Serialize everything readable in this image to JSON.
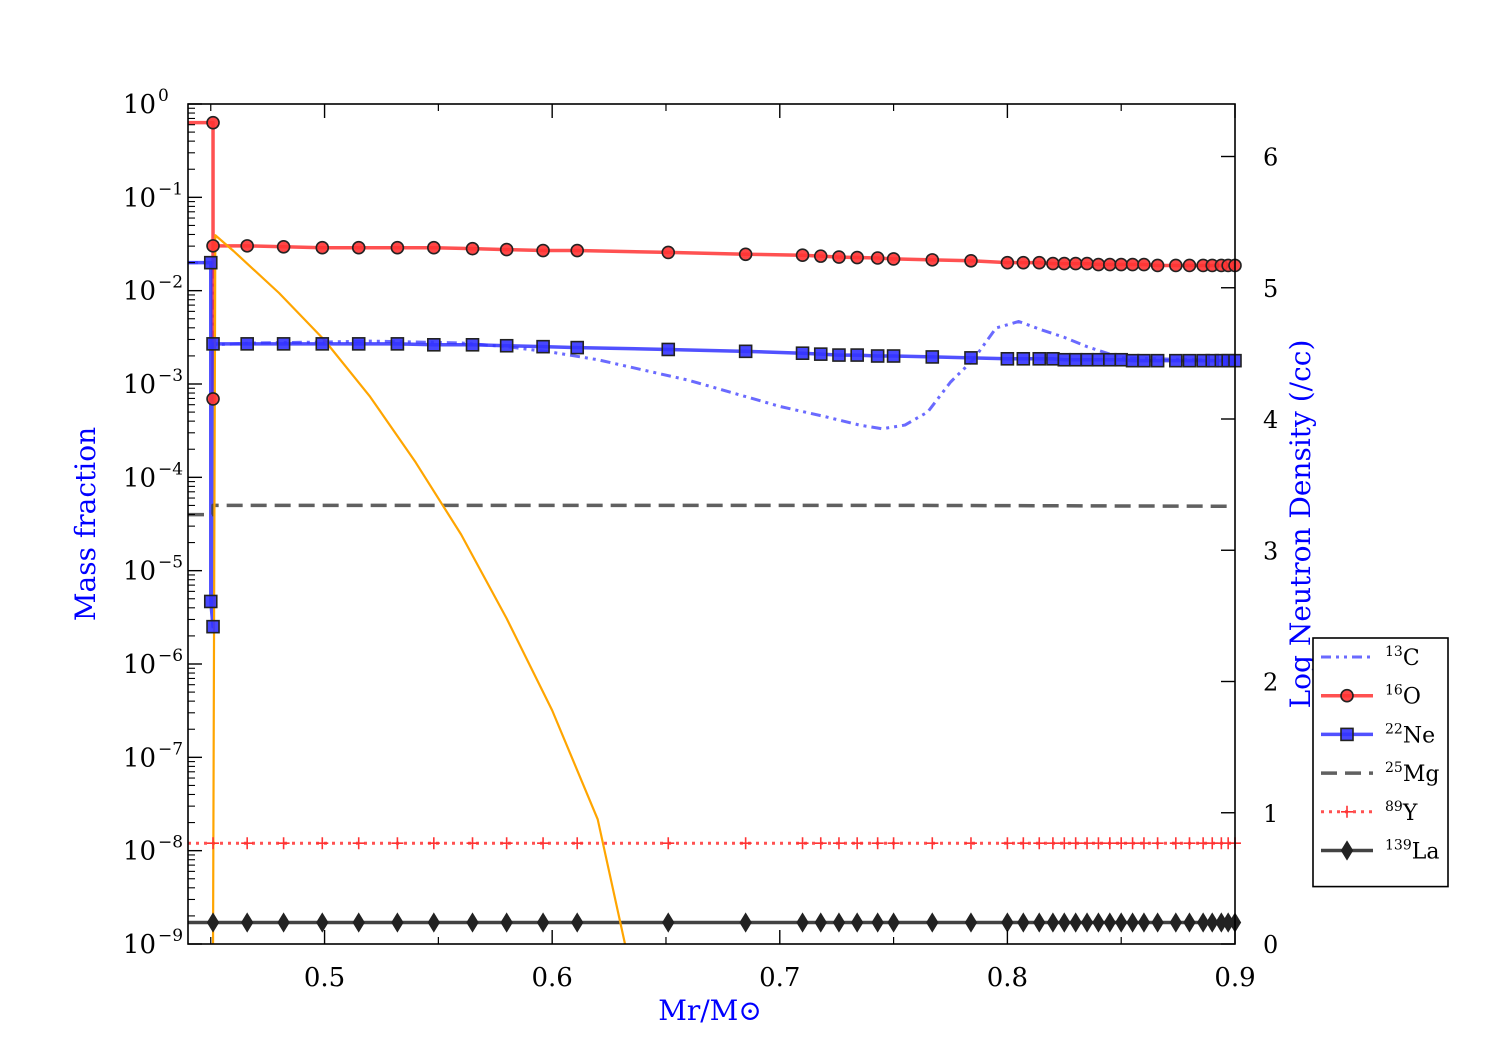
{
  "chart_data": {
    "type": "line",
    "title": "",
    "xlabel": "Mr/M⊙",
    "ylabel": "Mass fraction",
    "ylabel_right": "Log Neutron Density (/cc)",
    "xlim": [
      0.44,
      0.9
    ],
    "ylim_log10": [
      -9,
      0
    ],
    "ylim_right": [
      0,
      6.4
    ],
    "x_ticks": [
      0.5,
      0.6,
      0.7,
      0.8,
      0.9
    ],
    "x_tick_labels": [
      "0.5",
      "0.6",
      "0.7",
      "0.8",
      "0.9"
    ],
    "y_ticks": [
      {
        "base": "10",
        "exp": "0",
        "value": 0
      },
      {
        "base": "10",
        "exp": "−1",
        "value": -1
      },
      {
        "base": "10",
        "exp": "−2",
        "value": -2
      },
      {
        "base": "10",
        "exp": "−3",
        "value": -3
      },
      {
        "base": "10",
        "exp": "−4",
        "value": -4
      },
      {
        "base": "10",
        "exp": "−5",
        "value": -5
      },
      {
        "base": "10",
        "exp": "−6",
        "value": -6
      },
      {
        "base": "10",
        "exp": "−7",
        "value": -7
      },
      {
        "base": "10",
        "exp": "−8",
        "value": -8
      },
      {
        "base": "10",
        "exp": "−9",
        "value": -9
      }
    ],
    "y_right_ticks": [
      0,
      1,
      2,
      3,
      4,
      5,
      6
    ],
    "y_right_tick_labels": [
      "0",
      "1",
      "2",
      "3",
      "4",
      "5",
      "6"
    ],
    "legend_position": "right-outside-bottom",
    "series": [
      {
        "name": "13C",
        "mass": "13",
        "element": "C",
        "color": "#5050ff",
        "style": "dashdotdot",
        "marker": "none",
        "x": [
          0.44,
          0.451,
          0.451,
          0.47,
          0.5,
          0.52,
          0.54,
          0.56,
          0.58,
          0.6,
          0.62,
          0.64,
          0.66,
          0.68,
          0.7,
          0.72,
          0.735,
          0.745,
          0.755,
          0.765,
          0.775,
          0.785,
          0.795,
          0.805,
          0.815,
          0.825,
          0.835,
          0.85,
          0.9
        ],
        "y": [
          -1.7,
          -1.7,
          -2.58,
          -2.56,
          -2.55,
          -2.54,
          -2.55,
          -2.56,
          -2.6,
          -2.66,
          -2.74,
          -2.85,
          -2.96,
          -3.1,
          -3.24,
          -3.35,
          -3.44,
          -3.48,
          -3.44,
          -3.3,
          -2.98,
          -2.74,
          -2.4,
          -2.33,
          -2.42,
          -2.5,
          -2.6,
          -2.72,
          -2.75
        ]
      },
      {
        "name": "16O",
        "mass": "16",
        "element": "O",
        "color": "#ff3333",
        "style": "solid",
        "marker": "circle",
        "x": [
          0.44,
          0.451,
          0.451,
          0.451,
          0.451,
          0.466,
          0.482,
          0.499,
          0.515,
          0.532,
          0.548,
          0.565,
          0.58,
          0.596,
          0.611,
          0.651,
          0.685,
          0.71,
          0.718,
          0.726,
          0.734,
          0.743,
          0.75,
          0.767,
          0.784,
          0.8,
          0.807,
          0.814,
          0.82,
          0.825,
          0.83,
          0.835,
          0.84,
          0.845,
          0.85,
          0.855,
          0.86,
          0.866,
          0.874,
          0.88,
          0.886,
          0.89,
          0.894,
          0.897,
          0.9
        ],
        "y": [
          -0.2,
          -0.2,
          -3.16,
          -1.52,
          -1.52,
          -1.52,
          -1.53,
          -1.54,
          -1.54,
          -1.54,
          -1.54,
          -1.55,
          -1.56,
          -1.57,
          -1.57,
          -1.59,
          -1.61,
          -1.62,
          -1.63,
          -1.64,
          -1.645,
          -1.65,
          -1.66,
          -1.67,
          -1.68,
          -1.7,
          -1.7,
          -1.7,
          -1.71,
          -1.71,
          -1.71,
          -1.71,
          -1.72,
          -1.72,
          -1.72,
          -1.72,
          -1.72,
          -1.73,
          -1.73,
          -1.73,
          -1.73,
          -1.73,
          -1.73,
          -1.73,
          -1.73
        ],
        "markers": [
          [
            0.451,
            -0.2
          ],
          [
            0.451,
            -3.16
          ],
          [
            0.451,
            -1.52
          ],
          [
            0.466,
            -1.52
          ],
          [
            0.482,
            -1.53
          ],
          [
            0.499,
            -1.54
          ],
          [
            0.515,
            -1.54
          ],
          [
            0.532,
            -1.54
          ],
          [
            0.548,
            -1.54
          ],
          [
            0.565,
            -1.55
          ],
          [
            0.58,
            -1.56
          ],
          [
            0.596,
            -1.57
          ],
          [
            0.611,
            -1.57
          ],
          [
            0.651,
            -1.59
          ],
          [
            0.685,
            -1.61
          ],
          [
            0.71,
            -1.62
          ],
          [
            0.718,
            -1.63
          ],
          [
            0.726,
            -1.64
          ],
          [
            0.734,
            -1.645
          ],
          [
            0.743,
            -1.65
          ],
          [
            0.75,
            -1.66
          ],
          [
            0.767,
            -1.67
          ],
          [
            0.784,
            -1.68
          ],
          [
            0.8,
            -1.7
          ],
          [
            0.807,
            -1.7
          ],
          [
            0.814,
            -1.7
          ],
          [
            0.82,
            -1.71
          ],
          [
            0.825,
            -1.71
          ],
          [
            0.83,
            -1.71
          ],
          [
            0.835,
            -1.71
          ],
          [
            0.84,
            -1.72
          ],
          [
            0.845,
            -1.72
          ],
          [
            0.85,
            -1.72
          ],
          [
            0.855,
            -1.72
          ],
          [
            0.86,
            -1.72
          ],
          [
            0.866,
            -1.73
          ],
          [
            0.874,
            -1.73
          ],
          [
            0.88,
            -1.73
          ],
          [
            0.886,
            -1.73
          ],
          [
            0.89,
            -1.73
          ],
          [
            0.894,
            -1.73
          ],
          [
            0.897,
            -1.73
          ],
          [
            0.9,
            -1.73
          ]
        ]
      },
      {
        "name": "22Ne",
        "mass": "22",
        "element": "Ne",
        "color": "#3333ff",
        "style": "solid",
        "marker": "square",
        "x": [
          0.44,
          0.45,
          0.45,
          0.451,
          0.451,
          0.451,
          0.466,
          0.482,
          0.499,
          0.515,
          0.532,
          0.548,
          0.565,
          0.58,
          0.596,
          0.611,
          0.651,
          0.685,
          0.71,
          0.718,
          0.726,
          0.734,
          0.743,
          0.75,
          0.767,
          0.784,
          0.8,
          0.807,
          0.814,
          0.82,
          0.825,
          0.83,
          0.835,
          0.84,
          0.845,
          0.85,
          0.855,
          0.86,
          0.866,
          0.874,
          0.88,
          0.886,
          0.89,
          0.894,
          0.897,
          0.9
        ],
        "y": [
          -1.7,
          -1.7,
          -5.33,
          -5.6,
          -2.57,
          -2.57,
          -2.57,
          -2.57,
          -2.57,
          -2.57,
          -2.57,
          -2.58,
          -2.58,
          -2.59,
          -2.6,
          -2.61,
          -2.63,
          -2.65,
          -2.67,
          -2.68,
          -2.69,
          -2.69,
          -2.7,
          -2.7,
          -2.71,
          -2.72,
          -2.73,
          -2.73,
          -2.73,
          -2.73,
          -2.74,
          -2.74,
          -2.74,
          -2.74,
          -2.74,
          -2.74,
          -2.75,
          -2.75,
          -2.75,
          -2.75,
          -2.75,
          -2.75,
          -2.75,
          -2.75,
          -2.75,
          -2.75
        ],
        "markers": [
          [
            0.45,
            -1.7
          ],
          [
            0.45,
            -5.33
          ],
          [
            0.451,
            -5.6
          ],
          [
            0.451,
            -2.57
          ],
          [
            0.466,
            -2.57
          ],
          [
            0.482,
            -2.57
          ],
          [
            0.499,
            -2.57
          ],
          [
            0.515,
            -2.57
          ],
          [
            0.532,
            -2.57
          ],
          [
            0.548,
            -2.58
          ],
          [
            0.565,
            -2.58
          ],
          [
            0.58,
            -2.59
          ],
          [
            0.596,
            -2.6
          ],
          [
            0.611,
            -2.61
          ],
          [
            0.651,
            -2.63
          ],
          [
            0.685,
            -2.65
          ],
          [
            0.71,
            -2.67
          ],
          [
            0.718,
            -2.68
          ],
          [
            0.726,
            -2.69
          ],
          [
            0.734,
            -2.69
          ],
          [
            0.743,
            -2.7
          ],
          [
            0.75,
            -2.7
          ],
          [
            0.767,
            -2.71
          ],
          [
            0.784,
            -2.72
          ],
          [
            0.8,
            -2.73
          ],
          [
            0.807,
            -2.73
          ],
          [
            0.814,
            -2.73
          ],
          [
            0.82,
            -2.73
          ],
          [
            0.825,
            -2.74
          ],
          [
            0.83,
            -2.74
          ],
          [
            0.835,
            -2.74
          ],
          [
            0.84,
            -2.74
          ],
          [
            0.845,
            -2.74
          ],
          [
            0.85,
            -2.74
          ],
          [
            0.855,
            -2.75
          ],
          [
            0.86,
            -2.75
          ],
          [
            0.866,
            -2.75
          ],
          [
            0.874,
            -2.75
          ],
          [
            0.88,
            -2.75
          ],
          [
            0.886,
            -2.75
          ],
          [
            0.89,
            -2.75
          ],
          [
            0.894,
            -2.75
          ],
          [
            0.897,
            -2.75
          ],
          [
            0.9,
            -2.75
          ]
        ]
      },
      {
        "name": "25Mg",
        "mass": "25",
        "element": "Mg",
        "color": "#444444",
        "style": "dashed",
        "marker": "none",
        "x": [
          0.44,
          0.451,
          0.451,
          0.6,
          0.75,
          0.9
        ],
        "y": [
          -4.4,
          -4.4,
          -4.3,
          -4.3,
          -4.3,
          -4.31
        ]
      },
      {
        "name": "89Y",
        "mass": "89",
        "element": "Y",
        "color": "#ff3333",
        "style": "dotted",
        "marker": "plus",
        "x": [
          0.44,
          0.9
        ],
        "y": [
          -7.92,
          -7.92
        ],
        "marker_x": [
          0.451,
          0.466,
          0.482,
          0.499,
          0.515,
          0.532,
          0.548,
          0.565,
          0.58,
          0.596,
          0.611,
          0.651,
          0.685,
          0.71,
          0.718,
          0.726,
          0.734,
          0.743,
          0.75,
          0.767,
          0.784,
          0.8,
          0.807,
          0.814,
          0.82,
          0.825,
          0.83,
          0.835,
          0.84,
          0.845,
          0.85,
          0.855,
          0.86,
          0.866,
          0.874,
          0.88,
          0.886,
          0.89,
          0.894,
          0.897,
          0.9
        ]
      },
      {
        "name": "139La",
        "mass": "139",
        "element": "La",
        "color": "#222222",
        "style": "solid",
        "marker": "diamond",
        "x": [
          0.44,
          0.9
        ],
        "y": [
          -8.77,
          -8.77
        ],
        "marker_x": [
          0.451,
          0.466,
          0.482,
          0.499,
          0.515,
          0.532,
          0.548,
          0.565,
          0.58,
          0.596,
          0.611,
          0.651,
          0.685,
          0.71,
          0.718,
          0.726,
          0.734,
          0.743,
          0.75,
          0.767,
          0.784,
          0.8,
          0.807,
          0.814,
          0.82,
          0.825,
          0.83,
          0.835,
          0.84,
          0.845,
          0.85,
          0.855,
          0.86,
          0.866,
          0.874,
          0.88,
          0.886,
          0.89,
          0.894,
          0.897,
          0.9
        ]
      },
      {
        "name": "Log Neutron Density",
        "axis": "right",
        "color": "#ffa500",
        "style": "solid",
        "marker": "none",
        "in_legend": false,
        "x": [
          0.451,
          0.452,
          0.46,
          0.48,
          0.5,
          0.52,
          0.54,
          0.56,
          0.58,
          0.6,
          0.62,
          0.632
        ],
        "y": [
          0,
          5.4,
          5.28,
          4.96,
          4.6,
          4.17,
          3.67,
          3.12,
          2.48,
          1.78,
          0.95,
          0.0
        ]
      }
    ]
  }
}
